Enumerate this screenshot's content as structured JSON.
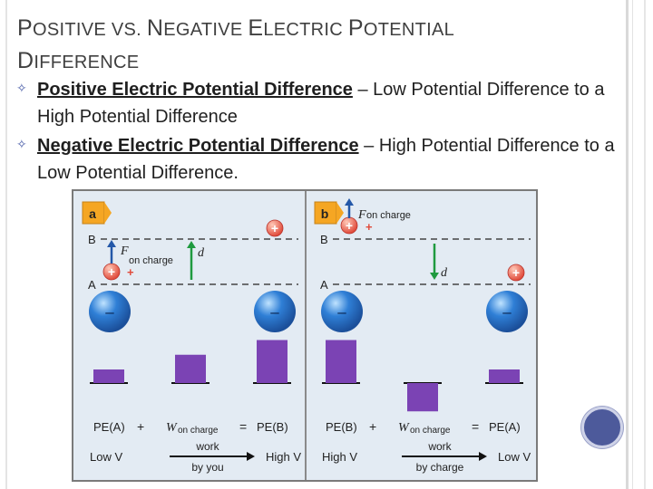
{
  "slide": {
    "title": {
      "line1": [
        {
          "cap": "P",
          "rest": "OSITIVE VS."
        },
        {
          "cap": "N",
          "rest": "EGATIVE"
        },
        {
          "cap": "E",
          "rest": "LECTRIC"
        },
        {
          "cap": "P",
          "rest": "OTENTIAL"
        }
      ],
      "line2": [
        {
          "cap": "D",
          "rest": "IFFERENCE"
        }
      ]
    },
    "bullets": [
      {
        "term": "Positive Electric Potential Difference",
        "rest": " – Low Potential Difference to a High Potential Difference"
      },
      {
        "term": "Negative Electric Potential Difference",
        "rest": " – High Potential Difference to a Low Potential Difference."
      }
    ],
    "bullet_icon": "hollow-four-point-star-icon",
    "accent_color": "#4a5da8"
  },
  "figure": {
    "panel_a": {
      "badge": "a",
      "line_b": "B",
      "line_a": "A",
      "force_label": "F",
      "force_sub": "on charge",
      "d_label": "d",
      "plus": "+",
      "minus": "–",
      "eq_left": "PE(A)",
      "eq_plus": "+",
      "eq_work": "W",
      "eq_work_sub": "on charge",
      "eq_equals": "=",
      "eq_right": "PE(B)",
      "low_v": "Low V",
      "high_v": "High V",
      "arrow_top": "work",
      "arrow_bottom": "by you",
      "bar_levels": [
        0.12,
        0.25,
        0.38
      ]
    },
    "panel_b": {
      "badge": "b",
      "line_b": "B",
      "line_a": "A",
      "force_label": "F",
      "force_sub": "on charge",
      "d_label": "d",
      "plus": "+",
      "minus": "–",
      "eq_left": "PE(B)",
      "eq_plus": "+",
      "eq_work": "W",
      "eq_work_sub": "on charge",
      "eq_equals": "=",
      "eq_right": "PE(A)",
      "low_v": "Low V",
      "high_v": "High V",
      "arrow_top": "work",
      "arrow_bottom": "by charge",
      "bar_levels": [
        0.38,
        -0.25,
        0.12
      ]
    },
    "colors": {
      "background": "#e3ebf3",
      "bar": "#7b43b4",
      "sphere": "#2f7fd6",
      "plus_charge": "#e04a3a",
      "arrow_green": "#1f9a3f",
      "arrow_blue": "#2458a8",
      "badge": "#f5a623"
    }
  }
}
